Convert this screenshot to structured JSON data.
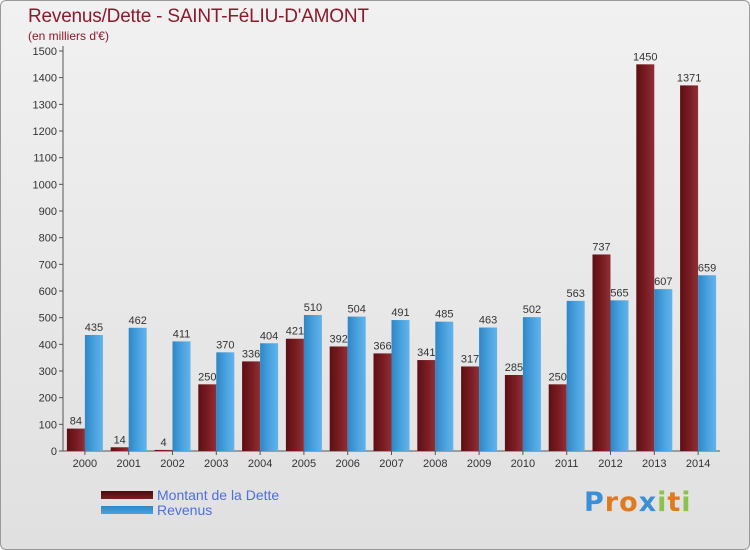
{
  "title": "Revenus/Dette - SAINT-FéLIU-D'AMONT",
  "subtitle": "(en milliers d'€)",
  "legend": {
    "debt_label": "Montant de la Dette",
    "revenue_label": "Revenus"
  },
  "logo": {
    "letters": [
      "P",
      "r",
      "o",
      "x",
      "i",
      "t",
      "i"
    ]
  },
  "colors": {
    "debt": "#7a1d22",
    "revenue": "#4aa3e0",
    "title": "#8b1a2c",
    "legend_text": "#4d6fe0",
    "logo_letters": [
      "#3b8fd6",
      "#e07a1f",
      "#e07a1f",
      "#3b8fd6",
      "#8bc34a",
      "#e07a1f",
      "#8bc34a"
    ]
  },
  "chart_data": {
    "type": "bar",
    "title": "Revenus/Dette - SAINT-FéLIU-D'AMONT",
    "ylabel": "(en milliers d'€)",
    "xlabel": "",
    "ylim": [
      0,
      1500
    ],
    "yticks": [
      0,
      100,
      200,
      300,
      400,
      500,
      600,
      700,
      800,
      900,
      1000,
      1100,
      1200,
      1300,
      1400,
      1500
    ],
    "grid": false,
    "legend_position": "bottom-left",
    "categories": [
      "2000",
      "2001",
      "2002",
      "2003",
      "2004",
      "2005",
      "2006",
      "2007",
      "2008",
      "2009",
      "2010",
      "2011",
      "2012",
      "2013",
      "2014"
    ],
    "series": [
      {
        "name": "Montant de la Dette",
        "values": [
          84,
          14,
          4,
          250,
          336,
          421,
          392,
          366,
          341,
          317,
          285,
          250,
          737,
          1450,
          1371
        ]
      },
      {
        "name": "Revenus",
        "values": [
          435,
          462,
          411,
          370,
          404,
          510,
          504,
          491,
          485,
          463,
          502,
          563,
          565,
          607,
          659
        ]
      }
    ]
  }
}
